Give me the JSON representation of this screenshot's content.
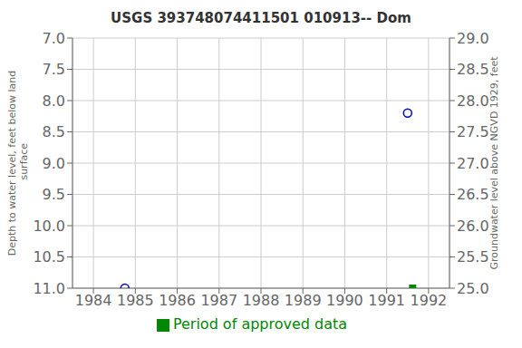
{
  "chart_data": {
    "type": "scatter",
    "title": "USGS 393748074411501 010913-- Dom",
    "ylabel": "Depth to water level, feet below land\n surface",
    "y2label": "Groundwater level above NGVD 1929, feet",
    "xlim": [
      1983.5,
      1992.5
    ],
    "xticks": [
      1984,
      1985,
      1986,
      1987,
      1988,
      1989,
      1990,
      1991,
      1992
    ],
    "ylim": [
      11.0,
      7.0
    ],
    "yticks": [
      {
        "value": 7.0,
        "label": "7.0"
      },
      7.5,
      {
        "value": 8.0,
        "label": "8.0"
      },
      8.5,
      {
        "value": 9.0,
        "label": "9.0"
      },
      9.5,
      {
        "value": 10.0,
        "label": "10.0"
      },
      10.5,
      {
        "value": 11.0,
        "label": "11.0"
      }
    ],
    "y2lim": [
      25.0,
      29.0
    ],
    "y2ticks": [
      {
        "value": 25.0,
        "label": "25.0"
      },
      25.5,
      {
        "value": 26.0,
        "label": "26.0"
      },
      26.5,
      {
        "value": 27.0,
        "label": "27.0"
      },
      27.5,
      {
        "value": 28.0,
        "label": "28.0"
      },
      28.5,
      {
        "value": 29.0,
        "label": "29.0"
      }
    ],
    "grid": true,
    "legend": "bottom",
    "series": [
      {
        "color": "#0000cc",
        "marker": "open_circle",
        "x": [
          1984.75,
          1991.5
        ],
        "values": [
          11.0,
          8.2
        ]
      },
      {
        "name": "Period of approved data",
        "color": "#008800",
        "marker": "square",
        "x": [
          1991.62
        ],
        "values": [
          11.0
        ]
      }
    ]
  }
}
